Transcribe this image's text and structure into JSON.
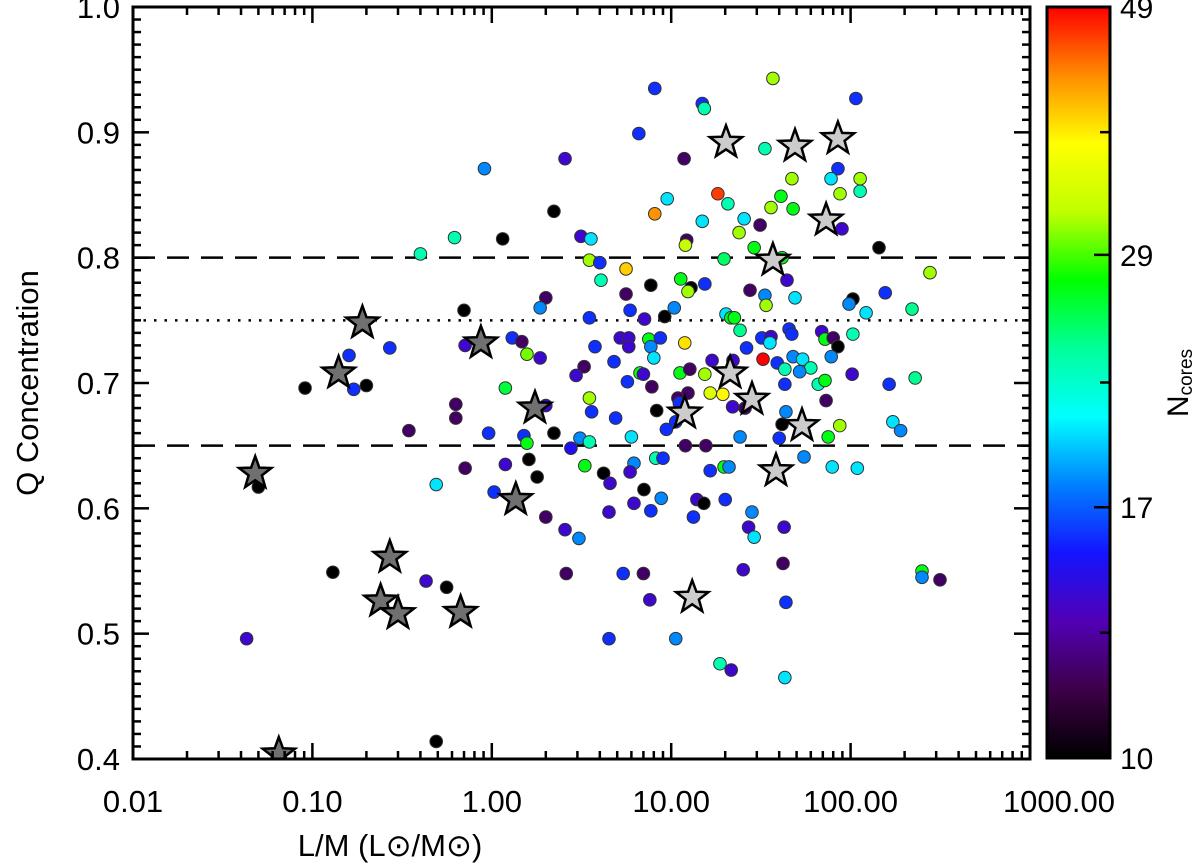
{
  "chart_data": {
    "type": "scatter",
    "xlabel": "L/M (L⊙/M⊙)",
    "ylabel": "Q Concentration",
    "xscale": "log",
    "xlim": [
      0.01,
      1000
    ],
    "ylim": [
      0.4,
      1.0
    ],
    "xticks": [
      "0.01",
      "0.10",
      "1.00",
      "10.00",
      "100.00",
      "1000.00"
    ],
    "yticks": [
      "1.0",
      "0.9",
      "0.8",
      "0.7",
      "0.6",
      "0.5",
      "0.4"
    ],
    "grid": false,
    "reference_lines": [
      {
        "y": 0.8,
        "style": "dashed"
      },
      {
        "y": 0.75,
        "style": "dotted"
      },
      {
        "y": 0.65,
        "style": "dashed"
      }
    ],
    "colorbar": {
      "label": "N",
      "label_sub": "cores",
      "scale": "log",
      "range": [
        10,
        49
      ],
      "ticks": [
        "49",
        "29",
        "17",
        "10"
      ],
      "colormap": [
        "#000000",
        "#3d0048",
        "#5200b4",
        "#1414ff",
        "#0080ff",
        "#00ffff",
        "#00ff9a",
        "#00ff00",
        "#c0ff00",
        "#ffff00",
        "#ff8c00",
        "#ff0000"
      ]
    },
    "circle_points_x_y_ncores": [
      [
        8.1,
        0.935,
        16
      ],
      [
        14.9,
        0.923,
        16
      ],
      [
        15.3,
        0.919,
        23
      ],
      [
        6.6,
        0.899,
        16
      ],
      [
        0.91,
        0.871,
        18
      ],
      [
        2.56,
        0.879,
        14
      ],
      [
        11.8,
        0.879,
        12
      ],
      [
        18.2,
        0.851,
        46
      ],
      [
        20.7,
        0.843,
        23
      ],
      [
        9.5,
        0.847,
        20
      ],
      [
        8.1,
        0.835,
        42
      ],
      [
        14.9,
        0.829,
        20
      ],
      [
        2.22,
        0.837,
        10
      ],
      [
        0.62,
        0.816,
        23
      ],
      [
        1.15,
        0.815,
        10
      ],
      [
        3.14,
        0.817,
        14
      ],
      [
        3.57,
        0.815,
        20
      ],
      [
        12.2,
        0.814,
        12
      ],
      [
        12.0,
        0.81,
        32
      ],
      [
        3.5,
        0.798,
        31
      ],
      [
        4.0,
        0.796,
        16
      ],
      [
        5.6,
        0.791,
        39
      ],
      [
        19.7,
        0.799,
        25
      ],
      [
        36.9,
        0.943,
        31
      ],
      [
        107,
        0.927,
        16
      ],
      [
        33.3,
        0.887,
        23
      ],
      [
        85,
        0.871,
        16
      ],
      [
        77.8,
        0.863,
        20
      ],
      [
        47.1,
        0.863,
        31
      ],
      [
        113,
        0.863,
        31
      ],
      [
        87.3,
        0.851,
        31
      ],
      [
        113,
        0.853,
        23
      ],
      [
        40.9,
        0.849,
        27
      ],
      [
        36,
        0.84,
        31
      ],
      [
        47.8,
        0.839,
        27
      ],
      [
        89.5,
        0.823,
        14
      ],
      [
        25.5,
        0.831,
        20
      ],
      [
        31.3,
        0.826,
        12
      ],
      [
        23.9,
        0.82,
        31
      ],
      [
        29,
        0.808,
        27
      ],
      [
        144,
        0.808,
        10
      ],
      [
        41.5,
        0.8,
        27
      ],
      [
        277,
        0.788,
        31
      ],
      [
        44.2,
        0.782,
        14
      ],
      [
        4.06,
        0.782,
        23
      ],
      [
        7.7,
        0.778,
        10
      ],
      [
        11.3,
        0.783,
        27
      ],
      [
        12.9,
        0.776,
        10
      ],
      [
        12.4,
        0.773,
        31
      ],
      [
        15.4,
        0.779,
        16
      ],
      [
        5.6,
        0.771,
        12
      ],
      [
        2.0,
        0.768,
        12
      ],
      [
        1.86,
        0.76,
        18
      ],
      [
        0.7,
        0.758,
        10
      ],
      [
        5.9,
        0.758,
        16
      ],
      [
        10.4,
        0.76,
        18
      ],
      [
        3.5,
        0.752,
        16
      ],
      [
        7.1,
        0.751,
        14
      ],
      [
        9.2,
        0.753,
        10
      ],
      [
        20.2,
        0.755,
        20
      ],
      [
        21.5,
        0.752,
        27
      ],
      [
        0.71,
        0.73,
        14
      ],
      [
        1.3,
        0.736,
        16
      ],
      [
        1.47,
        0.733,
        12
      ],
      [
        1.57,
        0.723,
        30
      ],
      [
        1.86,
        0.72,
        14
      ],
      [
        3.76,
        0.729,
        16
      ],
      [
        5.2,
        0.736,
        14
      ],
      [
        5.8,
        0.736,
        14
      ],
      [
        5.8,
        0.729,
        14
      ],
      [
        7.5,
        0.735,
        27
      ],
      [
        7.7,
        0.729,
        18
      ],
      [
        8.7,
        0.736,
        16
      ],
      [
        11.9,
        0.732,
        38
      ],
      [
        8.0,
        0.72,
        20
      ],
      [
        4.8,
        0.717,
        16
      ],
      [
        3.27,
        0.713,
        12
      ],
      [
        2.95,
        0.706,
        14
      ],
      [
        6.7,
        0.708,
        27
      ],
      [
        7.0,
        0.707,
        14
      ],
      [
        5.7,
        0.701,
        16
      ],
      [
        7.8,
        0.697,
        12
      ],
      [
        11.2,
        0.708,
        27
      ],
      [
        12.7,
        0.711,
        12
      ],
      [
        15.4,
        0.707,
        31
      ],
      [
        16.9,
        0.718,
        14
      ],
      [
        1.19,
        0.696,
        26
      ],
      [
        16.5,
        0.692,
        34
      ],
      [
        19.4,
        0.691,
        37
      ],
      [
        12.4,
        0.692,
        12
      ],
      [
        10.9,
        0.688,
        12
      ],
      [
        11.1,
        0.684,
        16
      ],
      [
        0.63,
        0.683,
        12
      ],
      [
        0.63,
        0.672,
        12
      ],
      [
        2.0,
        0.682,
        14
      ],
      [
        3.5,
        0.688,
        31
      ],
      [
        3.6,
        0.677,
        16
      ],
      [
        4.9,
        0.672,
        16
      ],
      [
        8.3,
        0.678,
        10
      ],
      [
        10.6,
        0.669,
        16
      ],
      [
        9.4,
        0.663,
        16
      ],
      [
        6.0,
        0.657,
        20
      ],
      [
        0.96,
        0.66,
        16
      ],
      [
        1.51,
        0.658,
        16
      ],
      [
        1.57,
        0.652,
        27
      ],
      [
        2.22,
        0.66,
        10
      ],
      [
        3.1,
        0.656,
        18
      ],
      [
        3.5,
        0.653,
        23
      ],
      [
        2.76,
        0.648,
        15
      ],
      [
        12.0,
        0.65,
        12
      ],
      [
        15.6,
        0.65,
        12
      ],
      [
        1.61,
        0.639,
        10
      ],
      [
        8.2,
        0.64,
        23
      ],
      [
        9.0,
        0.64,
        16
      ],
      [
        6.2,
        0.636,
        18
      ],
      [
        3.3,
        0.634,
        27
      ],
      [
        1.19,
        0.635,
        14
      ],
      [
        0.71,
        0.632,
        12
      ],
      [
        4.2,
        0.628,
        10
      ],
      [
        5.9,
        0.629,
        14
      ],
      [
        16.5,
        0.63,
        16
      ],
      [
        19.7,
        0.633,
        27
      ],
      [
        21,
        0.633,
        18
      ],
      [
        27.5,
        0.774,
        12
      ],
      [
        33.3,
        0.77,
        18
      ],
      [
        33.8,
        0.762,
        31
      ],
      [
        49,
        0.768,
        20
      ],
      [
        103,
        0.767,
        10
      ],
      [
        98,
        0.763,
        18
      ],
      [
        122,
        0.756,
        20
      ],
      [
        156,
        0.772,
        16
      ],
      [
        220,
        0.759,
        24
      ],
      [
        22.5,
        0.752,
        27
      ],
      [
        24.2,
        0.742,
        24
      ],
      [
        32,
        0.736,
        16
      ],
      [
        36,
        0.737,
        14
      ],
      [
        35.5,
        0.732,
        20
      ],
      [
        45.4,
        0.743,
        16
      ],
      [
        47,
        0.739,
        16
      ],
      [
        26.3,
        0.728,
        16
      ],
      [
        69,
        0.741,
        14
      ],
      [
        72,
        0.735,
        27
      ],
      [
        80,
        0.736,
        12
      ],
      [
        85,
        0.729,
        10
      ],
      [
        103,
        0.739,
        23
      ],
      [
        32.5,
        0.719,
        49
      ],
      [
        39,
        0.716,
        16
      ],
      [
        43,
        0.711,
        23
      ],
      [
        47.8,
        0.721,
        18
      ],
      [
        54,
        0.719,
        20
      ],
      [
        60,
        0.712,
        23
      ],
      [
        52,
        0.709,
        18
      ],
      [
        78,
        0.721,
        18
      ],
      [
        22.1,
        0.718,
        14
      ],
      [
        102,
        0.707,
        14
      ],
      [
        66,
        0.699,
        23
      ],
      [
        72,
        0.702,
        27
      ],
      [
        43,
        0.699,
        16
      ],
      [
        164,
        0.699,
        16
      ],
      [
        229,
        0.704,
        24
      ],
      [
        25.8,
        0.68,
        12
      ],
      [
        22,
        0.681,
        14
      ],
      [
        73,
        0.686,
        12
      ],
      [
        43.6,
        0.677,
        18
      ],
      [
        41.5,
        0.667,
        10
      ],
      [
        87,
        0.666,
        31
      ],
      [
        75,
        0.657,
        27
      ],
      [
        172,
        0.669,
        20
      ],
      [
        190,
        0.662,
        18
      ],
      [
        24.2,
        0.657,
        18
      ],
      [
        40,
        0.656,
        16
      ],
      [
        55,
        0.641,
        18
      ],
      [
        79,
        0.633,
        20
      ],
      [
        109,
        0.632,
        20
      ],
      [
        0.49,
        0.619,
        20
      ],
      [
        1.79,
        0.625,
        10
      ],
      [
        2.0,
        0.593,
        12
      ],
      [
        2.56,
        0.583,
        14
      ],
      [
        3.06,
        0.576,
        18
      ],
      [
        2.6,
        0.548,
        12
      ],
      [
        4.56,
        0.62,
        14
      ],
      [
        7.05,
        0.615,
        10
      ],
      [
        6.2,
        0.604,
        14
      ],
      [
        4.5,
        0.597,
        14
      ],
      [
        7.7,
        0.598,
        16
      ],
      [
        8.8,
        0.608,
        18
      ],
      [
        13.9,
        0.607,
        14
      ],
      [
        15.2,
        0.604,
        10
      ],
      [
        20,
        0.607,
        16
      ],
      [
        13.3,
        0.593,
        16
      ],
      [
        5.4,
        0.548,
        16
      ],
      [
        7.0,
        0.548,
        12
      ],
      [
        7.6,
        0.527,
        14
      ],
      [
        4.5,
        0.496,
        16
      ],
      [
        10.6,
        0.496,
        18
      ],
      [
        18.7,
        0.476,
        23
      ],
      [
        21.6,
        0.471,
        14
      ],
      [
        0.56,
        0.537,
        10
      ],
      [
        0.49,
        0.414,
        10
      ],
      [
        28.2,
        0.597,
        18
      ],
      [
        27,
        0.585,
        14
      ],
      [
        29,
        0.577,
        20
      ],
      [
        42.6,
        0.585,
        14
      ],
      [
        25.2,
        0.551,
        14
      ],
      [
        42,
        0.556,
        12
      ],
      [
        43.6,
        0.525,
        16
      ],
      [
        43,
        0.465,
        20
      ],
      [
        250,
        0.55,
        27
      ],
      [
        250,
        0.545,
        18
      ],
      [
        315,
        0.543,
        12
      ],
      [
        0.4,
        0.803,
        23
      ],
      [
        0.27,
        0.728,
        16
      ],
      [
        0.16,
        0.722,
        16
      ],
      [
        0.091,
        0.696,
        10
      ],
      [
        0.17,
        0.695,
        16
      ],
      [
        0.2,
        0.698,
        10
      ],
      [
        0.345,
        0.662,
        12
      ],
      [
        0.05,
        0.617,
        10
      ],
      [
        1.03,
        0.613,
        16
      ],
      [
        0.13,
        0.549,
        10
      ],
      [
        0.43,
        0.542,
        14
      ],
      [
        0.043,
        0.496,
        14
      ]
    ],
    "dark_star_points_x_y": [
      [
        0.19,
        0.748
      ],
      [
        0.14,
        0.708
      ],
      [
        0.87,
        0.732
      ],
      [
        1.74,
        0.68
      ],
      [
        1.36,
        0.607
      ],
      [
        0.048,
        0.628
      ],
      [
        0.27,
        0.561
      ],
      [
        0.24,
        0.526
      ],
      [
        0.3,
        0.516
      ],
      [
        0.67,
        0.517
      ],
      [
        0.065,
        0.404
      ]
    ],
    "light_star_points_x_y": [
      [
        20.2,
        0.892
      ],
      [
        49,
        0.889
      ],
      [
        85,
        0.895
      ],
      [
        73,
        0.83
      ],
      [
        36.9,
        0.798
      ],
      [
        21.3,
        0.708
      ],
      [
        11.9,
        0.676
      ],
      [
        28.2,
        0.687
      ],
      [
        53.6,
        0.666
      ],
      [
        38.4,
        0.63
      ],
      [
        13.1,
        0.529
      ]
    ],
    "colors": {
      "dark_star": "#707070",
      "light_star": "#cccccc",
      "axis": "#000000"
    }
  }
}
